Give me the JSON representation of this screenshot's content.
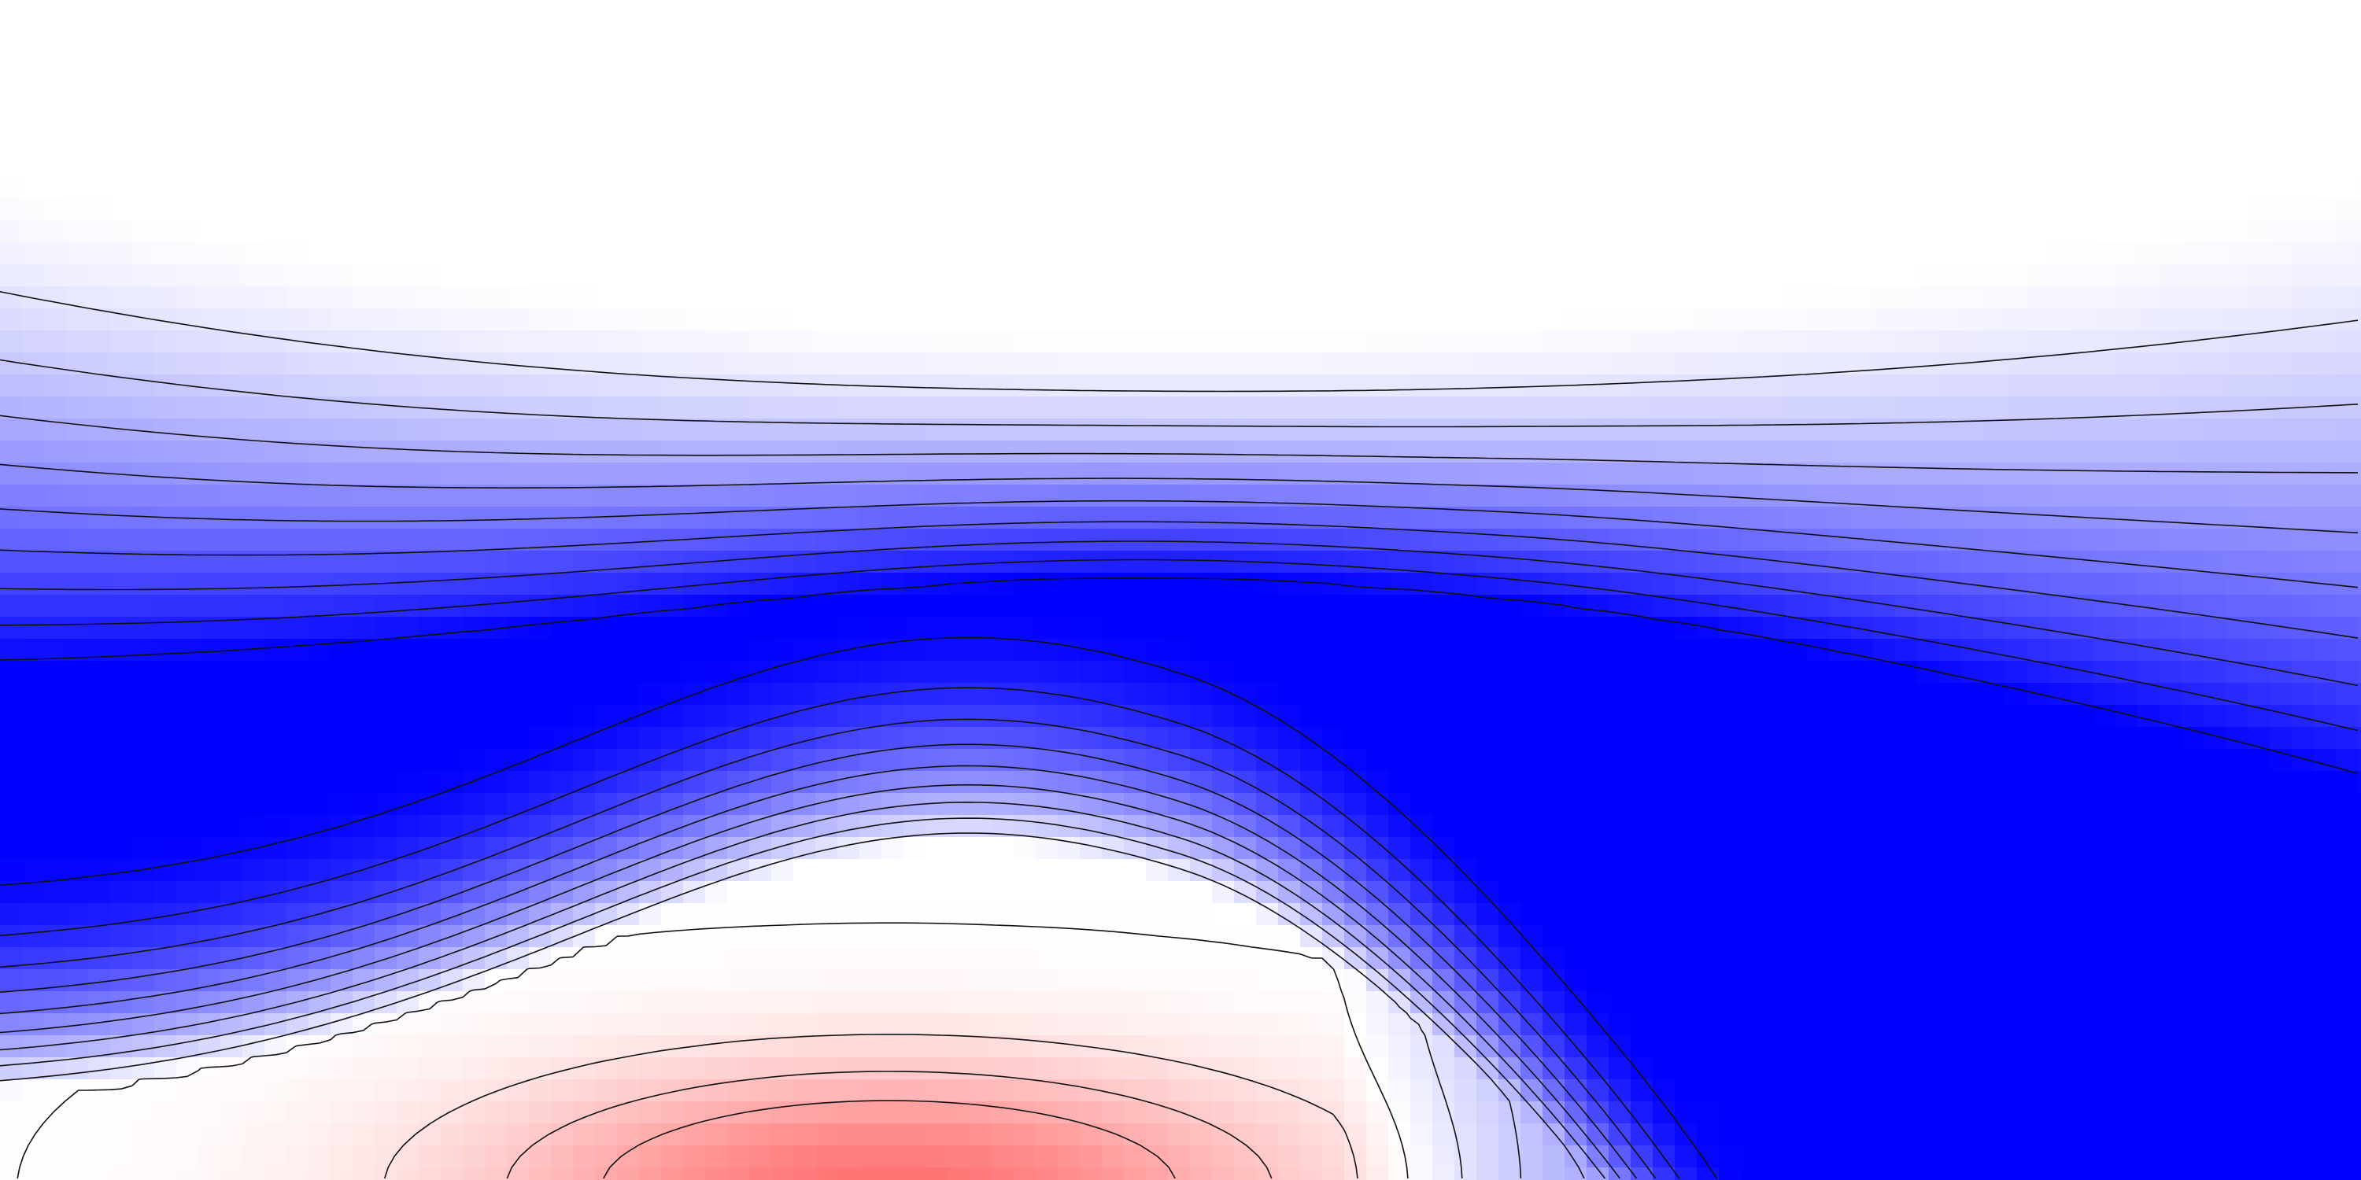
{
  "chart_data": {
    "type": "heatmap",
    "title": "",
    "xlabel": "",
    "ylabel": "",
    "colormap": {
      "low": "#0000ff",
      "mid": "#ffffff",
      "high": "#ff0000"
    },
    "color_range": [
      -1.0,
      1.0
    ],
    "grid": false,
    "legend": "none",
    "contour_line_color": "#111111",
    "contour_levels": 13,
    "field_features": [
      {
        "kind": "negative-plateau",
        "value": -1.0
      },
      {
        "kind": "positive-core",
        "value": 0.45
      },
      {
        "kind": "background",
        "value": 0.0
      }
    ]
  }
}
